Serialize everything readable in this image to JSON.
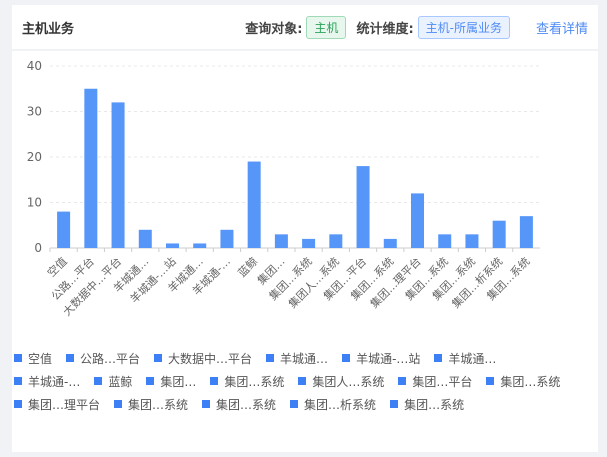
{
  "header": {
    "title": "主机业务",
    "query_label": "查询对象:",
    "query_value": "主机",
    "dim_label": "统计维度:",
    "dim_value": "主机-所属业务",
    "detail_link": "查看详情"
  },
  "chart_data": {
    "type": "bar",
    "categories": [
      "空值",
      "公路…平台",
      "大数据中…平台",
      "羊城通…",
      "羊城通-…站",
      "羊城通…",
      "羊城通-…",
      "蓝鲸",
      "集团…",
      "集团…系统",
      "集团人…系统",
      "集团…平台",
      "集团…系统",
      "集团…理平台",
      "集团…系统",
      "集团…系统",
      "集团…析系统",
      "集团…系统"
    ],
    "values": [
      8,
      35,
      32,
      4,
      1,
      1,
      4,
      19,
      3,
      2,
      3,
      18,
      2,
      12,
      3,
      3,
      6,
      7
    ],
    "ylim": [
      0,
      40
    ],
    "yticks": [
      0,
      10,
      20,
      30,
      40
    ],
    "grid": true,
    "legend": "bottom",
    "color": "#5596f8"
  }
}
